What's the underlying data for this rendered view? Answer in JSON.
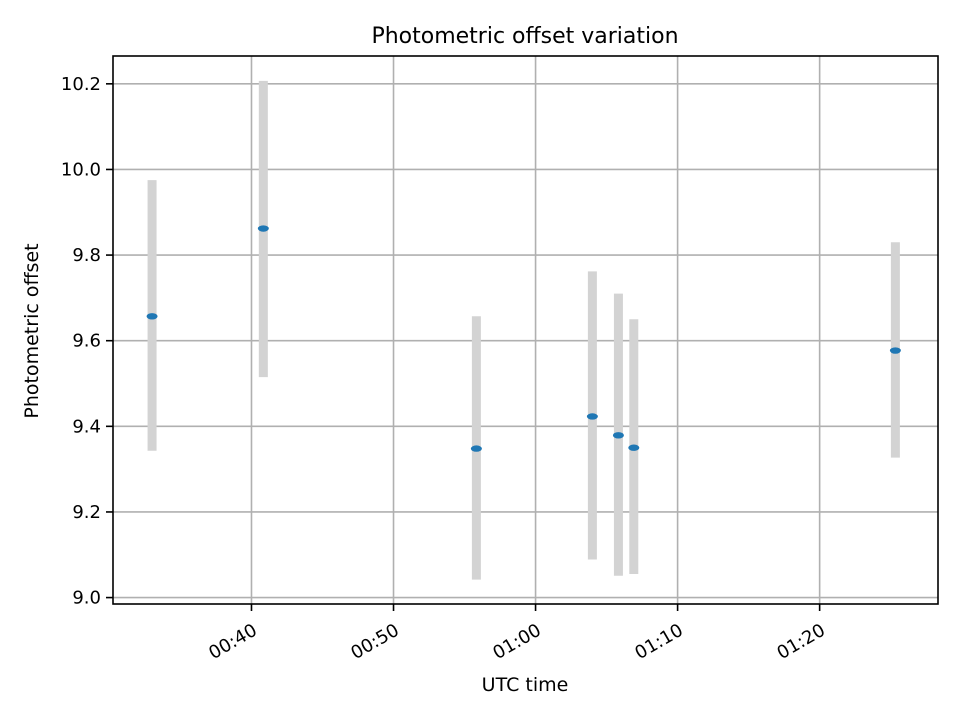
{
  "chart_data": {
    "type": "scatter",
    "title": "Photometric offset variation",
    "xlabel": "UTC time",
    "ylabel": "Photometric offset",
    "xlim": [
      "00:30:15",
      "01:28:20"
    ],
    "ylim": [
      8.985,
      10.265
    ],
    "x_ticks": [
      "00:40",
      "00:50",
      "01:00",
      "01:10",
      "01:20"
    ],
    "y_ticks": [
      "9.0",
      "9.2",
      "9.4",
      "9.6",
      "9.8",
      "10.0",
      "10.2"
    ],
    "grid": true,
    "series": [
      {
        "marker_color": "#1f77b4",
        "errorbar_color": "#d3d3d3",
        "points": [
          {
            "x": "00:33:00",
            "y": 9.657,
            "yerr_low": 9.343,
            "yerr_high": 9.975
          },
          {
            "x": "00:40:50",
            "y": 9.862,
            "yerr_low": 9.515,
            "yerr_high": 10.207
          },
          {
            "x": "00:55:50",
            "y": 9.348,
            "yerr_low": 9.042,
            "yerr_high": 9.657
          },
          {
            "x": "01:04:00",
            "y": 9.423,
            "yerr_low": 9.089,
            "yerr_high": 9.762
          },
          {
            "x": "01:05:50",
            "y": 9.379,
            "yerr_low": 9.051,
            "yerr_high": 9.71
          },
          {
            "x": "01:06:55",
            "y": 9.35,
            "yerr_low": 9.055,
            "yerr_high": 9.65
          },
          {
            "x": "01:25:20",
            "y": 9.577,
            "yerr_low": 9.327,
            "yerr_high": 9.83
          }
        ]
      }
    ]
  }
}
